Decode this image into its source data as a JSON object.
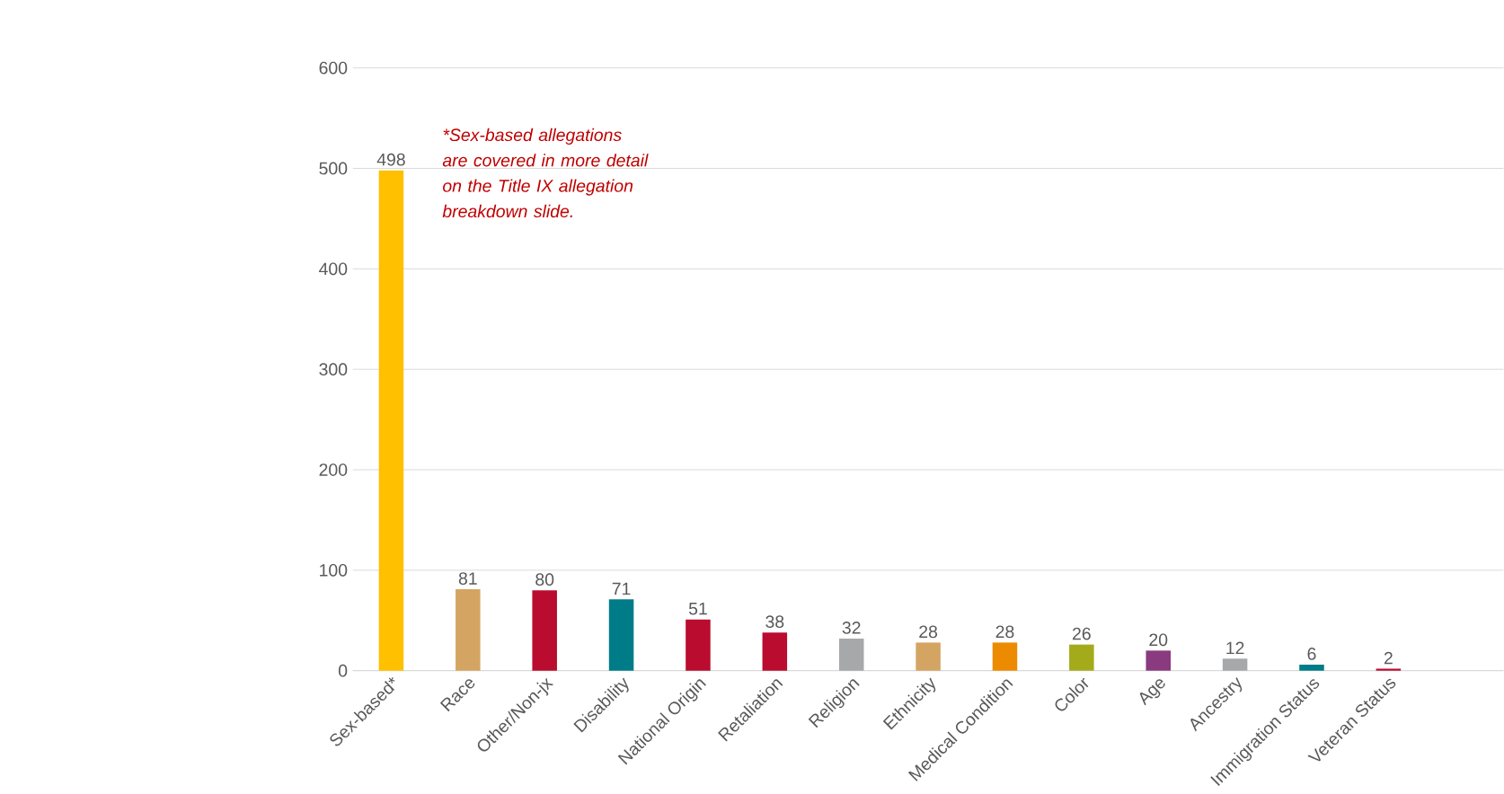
{
  "chart_data": {
    "type": "bar",
    "categories": [
      "Sex-based*",
      "Race",
      "Other/Non-jx",
      "Disability",
      "National Origin",
      "Retaliation",
      "Religion",
      "Ethnicity",
      "Medical Condition",
      "Color",
      "Age",
      "Ancestry",
      "Immigration Status",
      "Veteran Status"
    ],
    "values": [
      498,
      81,
      80,
      71,
      51,
      38,
      32,
      28,
      28,
      26,
      20,
      12,
      6,
      2
    ],
    "colors": [
      "#ffc000",
      "#d4a562",
      "#ba0c2f",
      "#007c89",
      "#ba0c2f",
      "#ba0c2f",
      "#a7a8aa",
      "#d4a562",
      "#ed8b00",
      "#a4ab1b",
      "#8a3a7e",
      "#a7a8aa",
      "#007c89",
      "#ba0c2f"
    ],
    "ylim": [
      0,
      600
    ],
    "yticks": [
      0,
      100,
      200,
      300,
      400,
      500,
      600
    ],
    "grid": "y",
    "data_labels": true,
    "annotations": [
      "*Sex-based allegations are covered in more detail on the Title IX allegation breakdown slide."
    ]
  }
}
